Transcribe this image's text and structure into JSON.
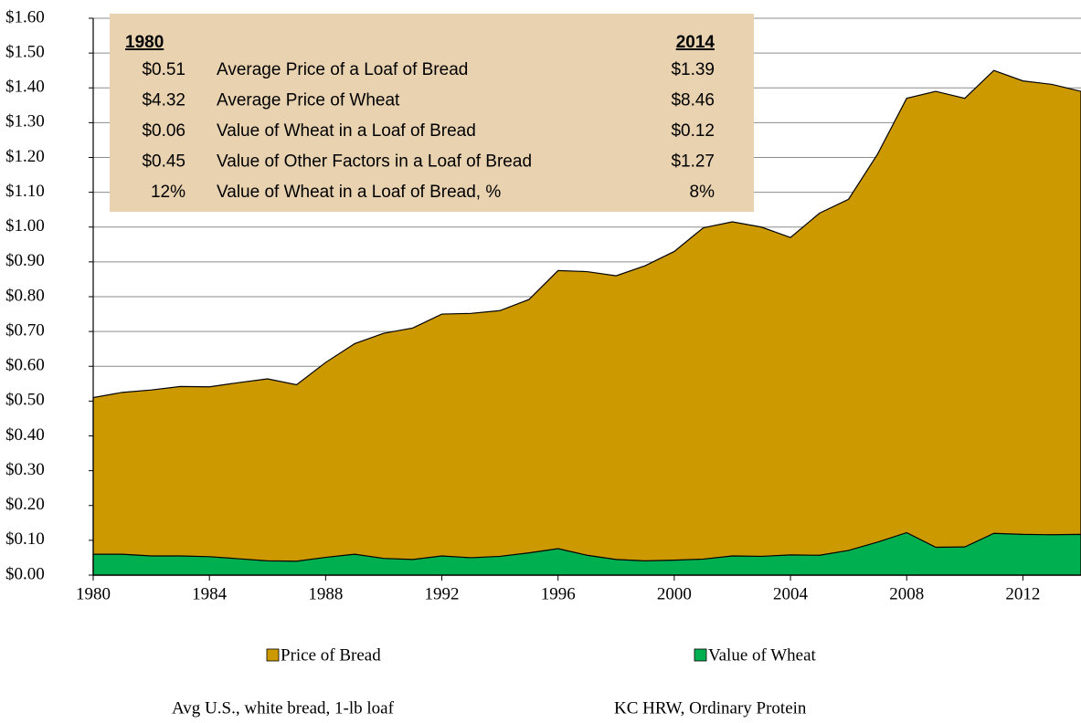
{
  "chart_data": {
    "type": "area",
    "x": [
      1980,
      1981,
      1982,
      1983,
      1984,
      1985,
      1986,
      1987,
      1988,
      1989,
      1990,
      1991,
      1992,
      1993,
      1994,
      1995,
      1996,
      1997,
      1998,
      1999,
      2000,
      2001,
      2002,
      2003,
      2004,
      2005,
      2006,
      2007,
      2008,
      2009,
      2010,
      2011,
      2012,
      2013,
      2014
    ],
    "series": [
      {
        "name": "Price of Bread",
        "color": "#cc9900",
        "values": [
          0.51,
          0.525,
          0.532,
          0.542,
          0.541,
          0.553,
          0.564,
          0.547,
          0.611,
          0.665,
          0.695,
          0.71,
          0.75,
          0.752,
          0.76,
          0.792,
          0.875,
          0.872,
          0.86,
          0.889,
          0.93,
          0.998,
          1.015,
          1.0,
          0.97,
          1.04,
          1.08,
          1.21,
          1.37,
          1.39,
          1.37,
          1.45,
          1.42,
          1.41,
          1.39
        ]
      },
      {
        "name": "Value of Wheat",
        "color": "#00b050",
        "values": [
          0.06,
          0.06,
          0.055,
          0.055,
          0.053,
          0.047,
          0.041,
          0.04,
          0.051,
          0.06,
          0.048,
          0.045,
          0.055,
          0.05,
          0.054,
          0.064,
          0.076,
          0.057,
          0.045,
          0.041,
          0.043,
          0.046,
          0.055,
          0.054,
          0.058,
          0.057,
          0.071,
          0.095,
          0.122,
          0.08,
          0.081,
          0.12,
          0.117,
          0.116,
          0.117
        ]
      }
    ],
    "xlim": [
      1980,
      2014
    ],
    "xticks": [
      1980,
      1984,
      1988,
      1992,
      1996,
      2000,
      2004,
      2008,
      2012
    ],
    "ylim": [
      0,
      1.6
    ],
    "yticks": [
      {
        "value": 0,
        "label": "$0.00"
      },
      {
        "value": 0.1,
        "label": "$0.10"
      },
      {
        "value": 0.2,
        "label": "$0.20"
      },
      {
        "value": 0.3,
        "label": "$0.30"
      },
      {
        "value": 0.4,
        "label": "$0.40"
      },
      {
        "value": 0.5,
        "label": "$0.50"
      },
      {
        "value": 0.6,
        "label": "$0.60"
      },
      {
        "value": 0.7,
        "label": "$0.70"
      },
      {
        "value": 0.8,
        "label": "$0.80"
      },
      {
        "value": 0.9,
        "label": "$0.90"
      },
      {
        "value": 1.0,
        "label": "$1.00"
      },
      {
        "value": 1.1,
        "label": "$1.10"
      },
      {
        "value": 1.2,
        "label": "$1.20"
      },
      {
        "value": 1.3,
        "label": "$1.30"
      },
      {
        "value": 1.4,
        "label": "$1.40"
      },
      {
        "value": 1.5,
        "label": "$1.50"
      },
      {
        "value": 1.6,
        "label": "$1.60"
      }
    ],
    "grid": true,
    "legend": "bottom",
    "annotation_table": {
      "header_left": "1980",
      "header_right": "2014",
      "rows": [
        [
          "$0.51",
          "Average Price of a Loaf of Bread",
          "$1.39"
        ],
        [
          "$4.32",
          "Average Price of Wheat",
          "$8.46"
        ],
        [
          "$0.06",
          "Value of Wheat in a Loaf of Bread",
          "$0.12"
        ],
        [
          "$0.45",
          "Value of Other Factors in a Loaf of Bread",
          "$1.27"
        ],
        [
          "12%",
          "Value of Wheat in a Loaf of Bread, %",
          "8%"
        ]
      ]
    },
    "notes": [
      "Avg U.S., white bread, 1-lb loaf",
      "KC HRW, Ordinary Protein"
    ]
  }
}
